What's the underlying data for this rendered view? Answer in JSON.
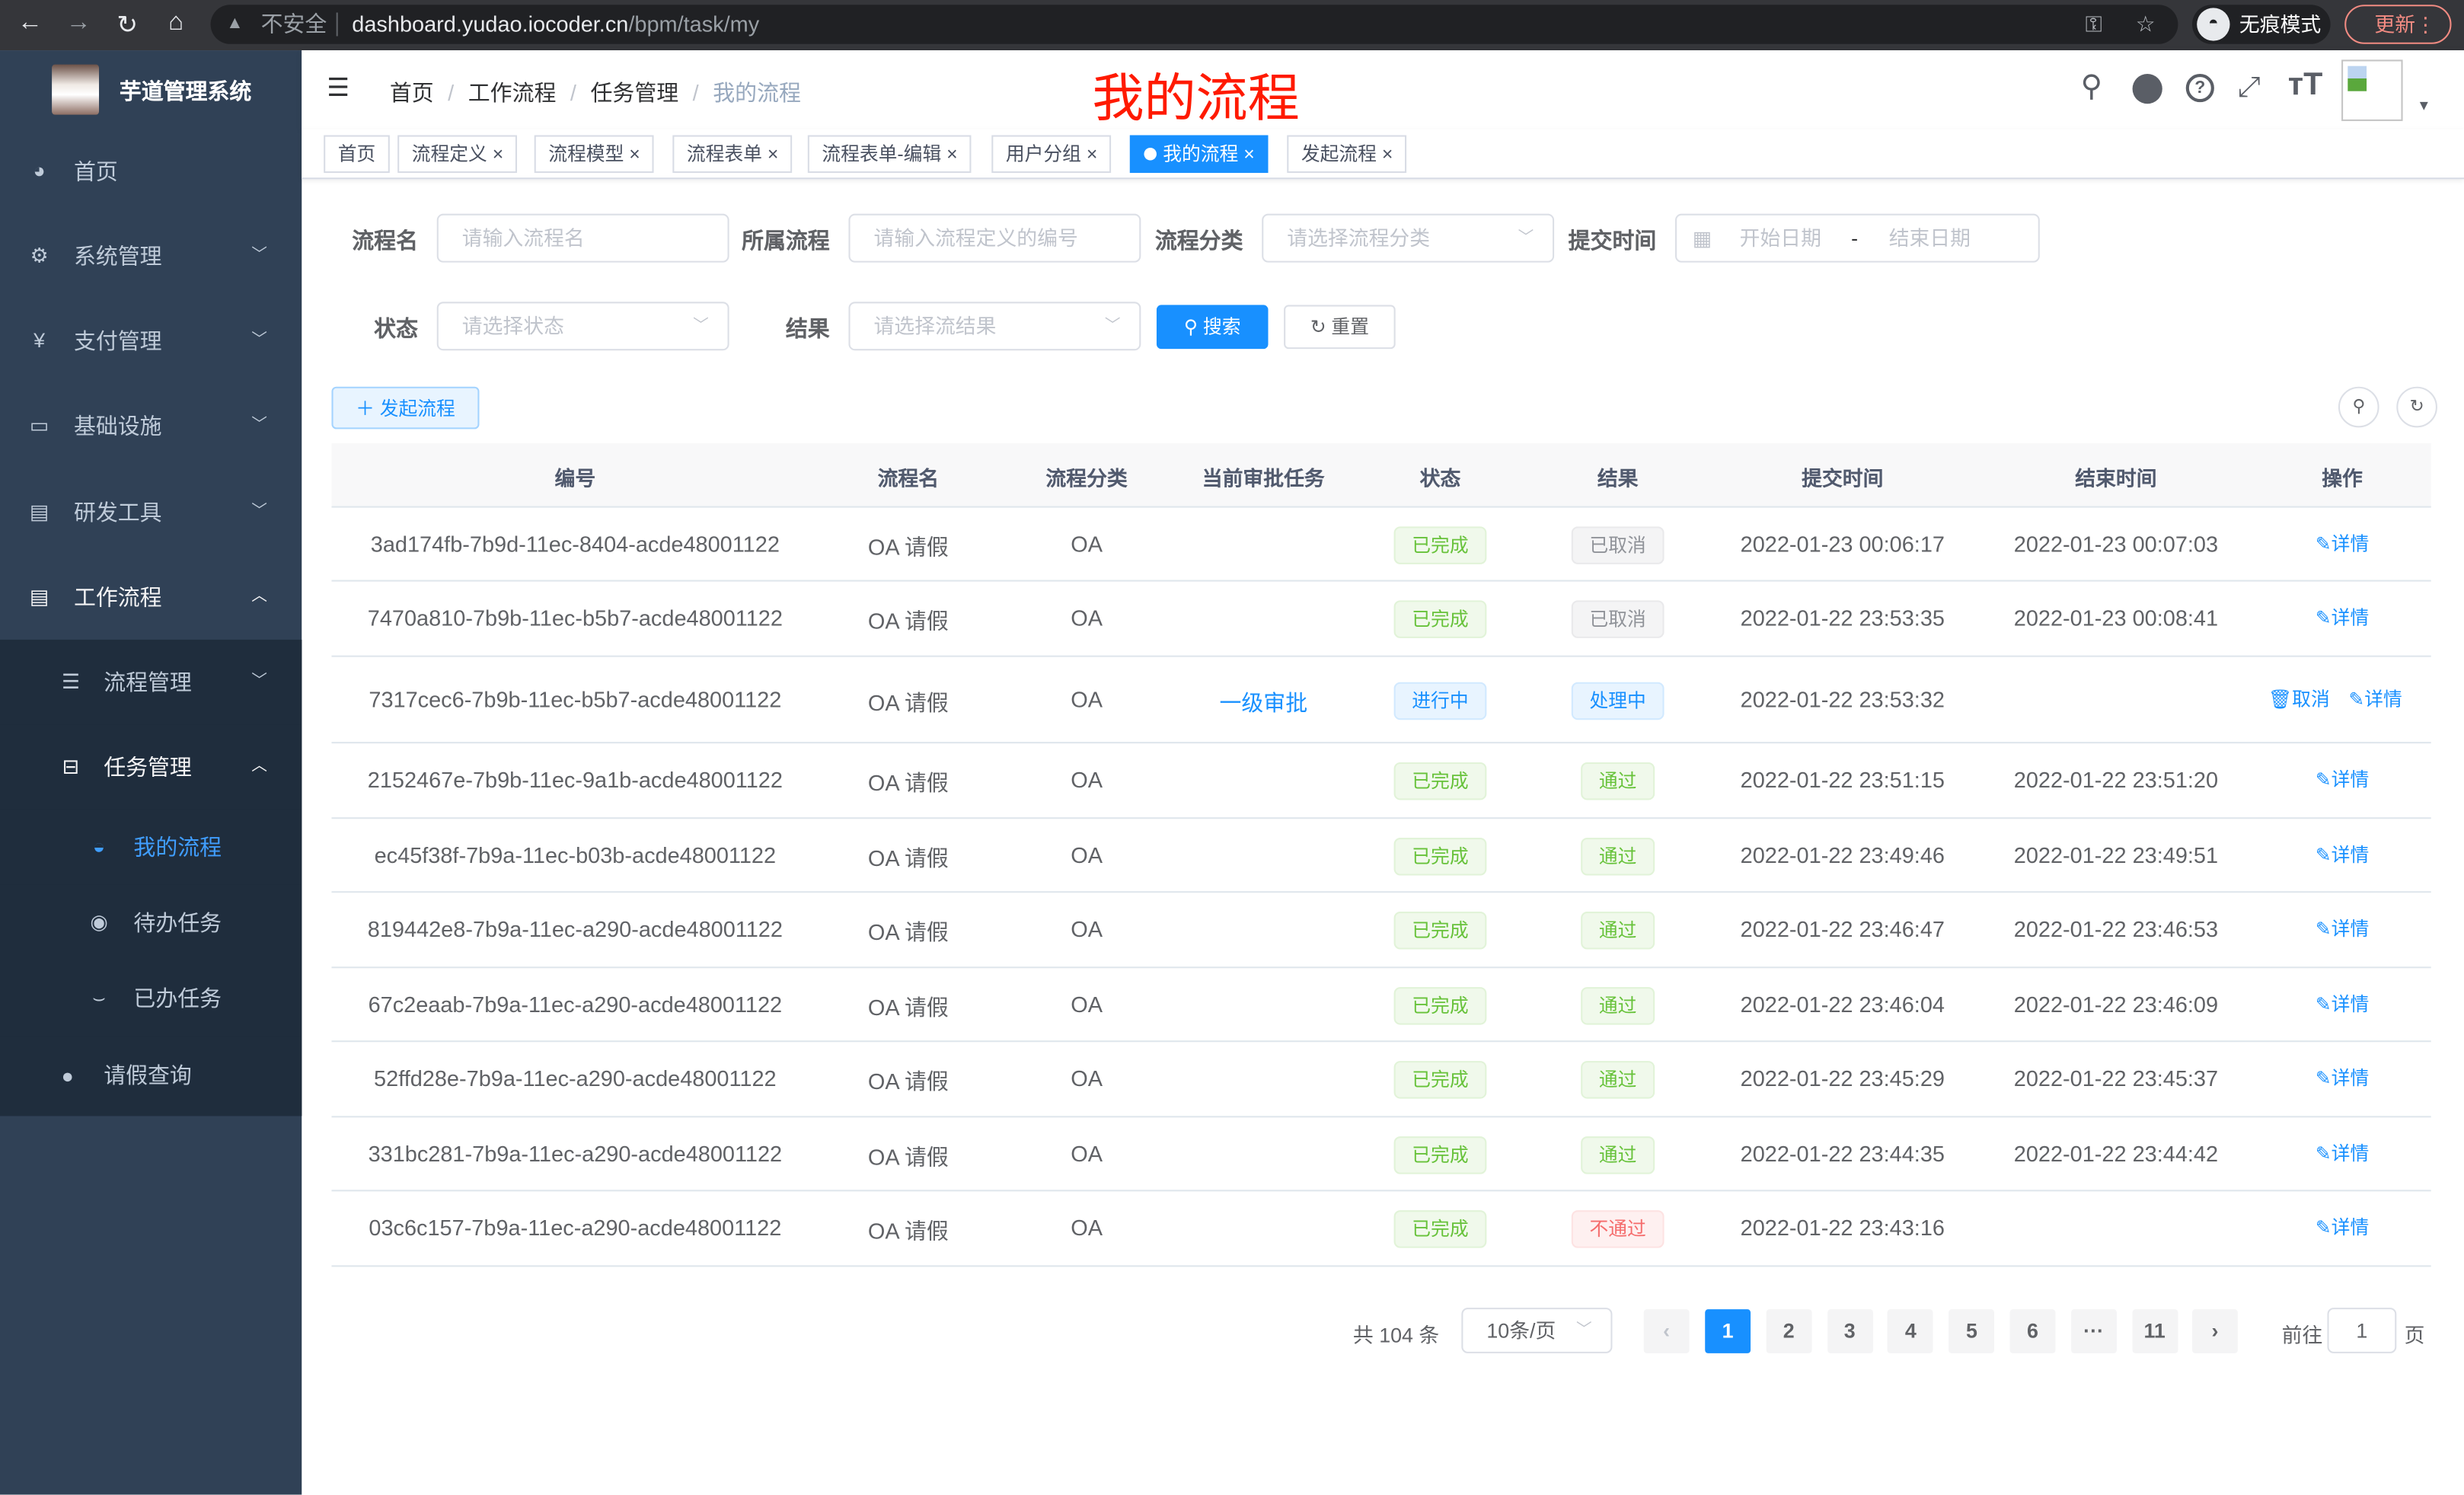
{
  "browser": {
    "security": "不安全",
    "url_host": "dashboard.yudao.iocoder.cn",
    "url_path": "/bpm/task/my",
    "incognito": "无痕模式",
    "update": "更新"
  },
  "app": {
    "name": "芋道管理系统",
    "page_heading": "我的流程"
  },
  "sidebar": {
    "items": [
      {
        "label": "首页",
        "icon": "dashboard-icon"
      },
      {
        "label": "系统管理",
        "icon": "gear-icon"
      },
      {
        "label": "支付管理",
        "icon": "yen-icon"
      },
      {
        "label": "基础设施",
        "icon": "monitor-icon"
      },
      {
        "label": "研发工具",
        "icon": "toolbox-icon"
      },
      {
        "label": "工作流程",
        "icon": "toolbox-icon"
      }
    ],
    "sub": [
      {
        "label": "流程管理"
      },
      {
        "label": "任务管理"
      }
    ],
    "subsub": [
      {
        "label": "我的流程"
      },
      {
        "label": "待办任务"
      },
      {
        "label": "已办任务"
      }
    ],
    "leave": "请假查询"
  },
  "breadcrumb": [
    "首页",
    "工作流程",
    "任务管理",
    "我的流程"
  ],
  "tabs": [
    {
      "label": "首页"
    },
    {
      "label": "流程定义"
    },
    {
      "label": "流程模型"
    },
    {
      "label": "流程表单"
    },
    {
      "label": "流程表单-编辑"
    },
    {
      "label": "用户分组"
    },
    {
      "label": "我的流程",
      "active": true
    },
    {
      "label": "发起流程"
    }
  ],
  "filters": {
    "name": {
      "label": "流程名",
      "placeholder": "请输入流程名"
    },
    "definition": {
      "label": "所属流程",
      "placeholder": "请输入流程定义的编号"
    },
    "category": {
      "label": "流程分类",
      "placeholder": "请选择流程分类"
    },
    "time": {
      "label": "提交时间",
      "start": "开始日期",
      "sep": "-",
      "end": "结束日期"
    },
    "status": {
      "label": "状态",
      "placeholder": "请选择状态"
    },
    "result": {
      "label": "结果",
      "placeholder": "请选择流结果"
    },
    "search": "搜索",
    "reset": "重置"
  },
  "toolbar": {
    "create": "发起流程"
  },
  "colors": {
    "primary": "#1890ff",
    "success": "#67c23a",
    "info": "#909399",
    "danger": "#f56c6c",
    "sidebar": "#304156",
    "heading": "#ff1a00"
  },
  "table": {
    "columns": [
      "编号",
      "流程名",
      "流程分类",
      "当前审批任务",
      "状态",
      "结果",
      "提交时间",
      "结束时间",
      "操作"
    ],
    "rows": [
      {
        "id": "3ad174fb-7b9d-11ec-8404-acde48001122",
        "name": "OA 请假",
        "category": "OA",
        "task": "",
        "status": "已完成",
        "status_type": "success",
        "result": "已取消",
        "result_type": "info",
        "created": "2022-01-23 00:06:17",
        "ended": "2022-01-23 00:07:03",
        "actions": [
          "详情"
        ]
      },
      {
        "id": "7470a810-7b9b-11ec-b5b7-acde48001122",
        "name": "OA 请假",
        "category": "OA",
        "task": "",
        "status": "已完成",
        "status_type": "success",
        "result": "已取消",
        "result_type": "info",
        "created": "2022-01-22 23:53:35",
        "ended": "2022-01-23 00:08:41",
        "actions": [
          "详情"
        ]
      },
      {
        "id": "7317cec6-7b9b-11ec-b5b7-acde48001122",
        "name": "OA 请假",
        "category": "OA",
        "task": "一级审批",
        "status": "进行中",
        "status_type": "primary",
        "result": "处理中",
        "result_type": "primary",
        "created": "2022-01-22 23:53:32",
        "ended": "",
        "actions": [
          "取消",
          "详情"
        ]
      },
      {
        "id": "2152467e-7b9b-11ec-9a1b-acde48001122",
        "name": "OA 请假",
        "category": "OA",
        "task": "",
        "status": "已完成",
        "status_type": "success",
        "result": "通过",
        "result_type": "success",
        "created": "2022-01-22 23:51:15",
        "ended": "2022-01-22 23:51:20",
        "actions": [
          "详情"
        ]
      },
      {
        "id": "ec45f38f-7b9a-11ec-b03b-acde48001122",
        "name": "OA 请假",
        "category": "OA",
        "task": "",
        "status": "已完成",
        "status_type": "success",
        "result": "通过",
        "result_type": "success",
        "created": "2022-01-22 23:49:46",
        "ended": "2022-01-22 23:49:51",
        "actions": [
          "详情"
        ]
      },
      {
        "id": "819442e8-7b9a-11ec-a290-acde48001122",
        "name": "OA 请假",
        "category": "OA",
        "task": "",
        "status": "已完成",
        "status_type": "success",
        "result": "通过",
        "result_type": "success",
        "created": "2022-01-22 23:46:47",
        "ended": "2022-01-22 23:46:53",
        "actions": [
          "详情"
        ]
      },
      {
        "id": "67c2eaab-7b9a-11ec-a290-acde48001122",
        "name": "OA 请假",
        "category": "OA",
        "task": "",
        "status": "已完成",
        "status_type": "success",
        "result": "通过",
        "result_type": "success",
        "created": "2022-01-22 23:46:04",
        "ended": "2022-01-22 23:46:09",
        "actions": [
          "详情"
        ]
      },
      {
        "id": "52ffd28e-7b9a-11ec-a290-acde48001122",
        "name": "OA 请假",
        "category": "OA",
        "task": "",
        "status": "已完成",
        "status_type": "success",
        "result": "通过",
        "result_type": "success",
        "created": "2022-01-22 23:45:29",
        "ended": "2022-01-22 23:45:37",
        "actions": [
          "详情"
        ]
      },
      {
        "id": "331bc281-7b9a-11ec-a290-acde48001122",
        "name": "OA 请假",
        "category": "OA",
        "task": "",
        "status": "已完成",
        "status_type": "success",
        "result": "通过",
        "result_type": "success",
        "created": "2022-01-22 23:44:35",
        "ended": "2022-01-22 23:44:42",
        "actions": [
          "详情"
        ]
      },
      {
        "id": "03c6c157-7b9a-11ec-a290-acde48001122",
        "name": "OA 请假",
        "category": "OA",
        "task": "",
        "status": "已完成",
        "status_type": "success",
        "result": "不通过",
        "result_type": "danger",
        "created": "2022-01-22 23:43:16",
        "ended": "",
        "actions": [
          "详情"
        ]
      }
    ]
  },
  "pagination": {
    "total": "共 104 条",
    "page_size": "10条/页",
    "pages": [
      "1",
      "2",
      "3",
      "4",
      "5",
      "6",
      "···",
      "11"
    ],
    "current": "1",
    "goto_label": "前往",
    "goto_value": "1",
    "goto_suffix": "页"
  }
}
